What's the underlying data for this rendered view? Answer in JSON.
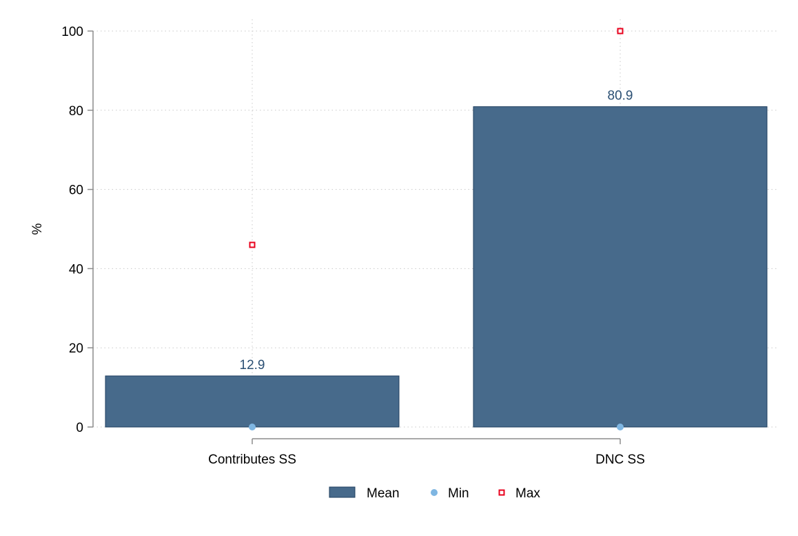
{
  "chart_data": {
    "type": "bar",
    "categories": [
      "Contributes SS",
      "DNC SS"
    ],
    "series": [
      {
        "name": "Mean",
        "kind": "bar",
        "values": [
          12.9,
          80.9
        ],
        "color": "#476a8b"
      },
      {
        "name": "Min",
        "kind": "point",
        "marker": "circle",
        "values": [
          0,
          0
        ],
        "color": "#7fb6e2"
      },
      {
        "name": "Max",
        "kind": "point",
        "marker": "square",
        "values": [
          46,
          100
        ],
        "color": "#e8001c"
      }
    ],
    "data_labels": [
      "12.9",
      "80.9"
    ],
    "ylabel": "%",
    "ylim": [
      0,
      100
    ],
    "yticks": [
      0,
      20,
      40,
      60,
      80,
      100
    ],
    "grid": true,
    "legend": "bottom"
  }
}
